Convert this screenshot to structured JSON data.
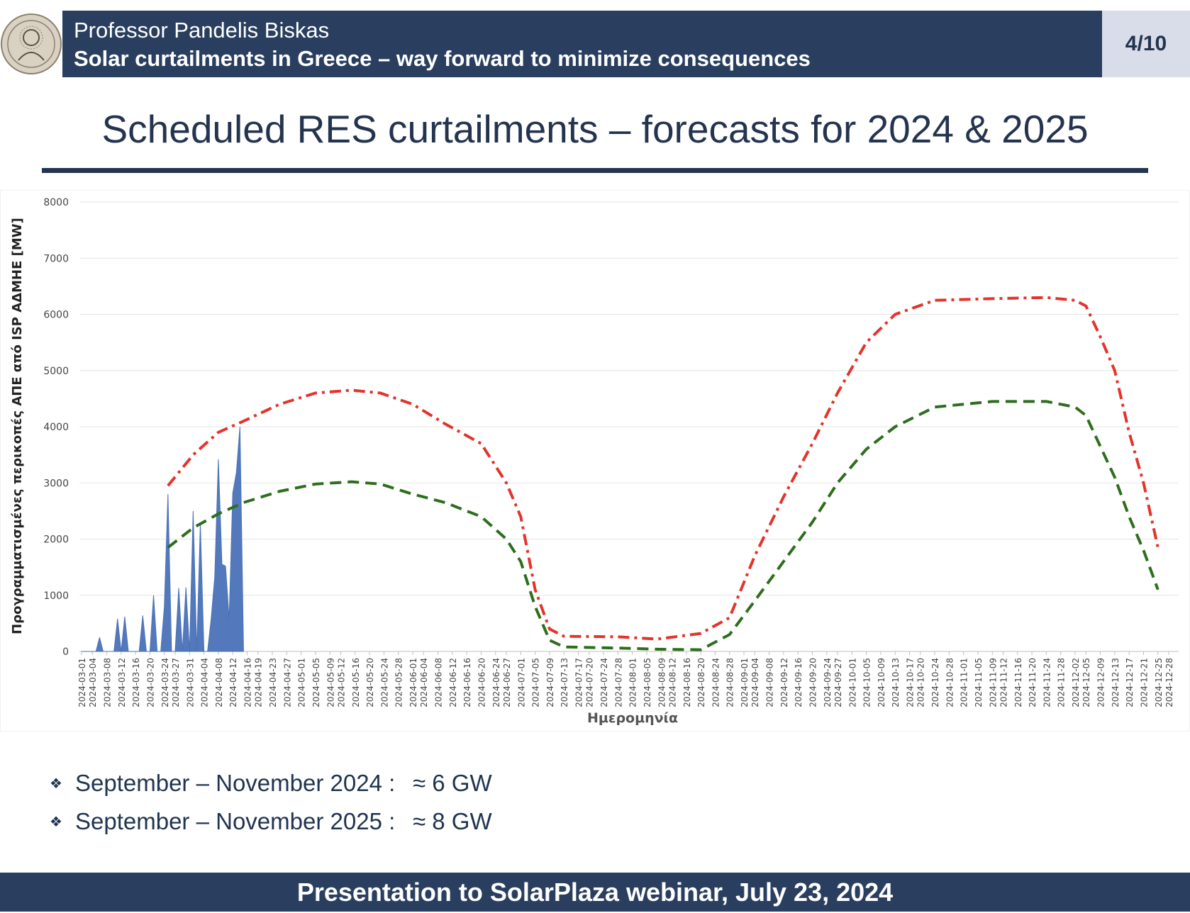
{
  "header": {
    "presenter": "Professor Pandelis Biskas",
    "subtitle": "Solar curtailments in Greece – way forward to minimize consequences",
    "page": "4/10"
  },
  "slide_title": "Scheduled RES curtailments – forecasts for 2024 & 2025",
  "chart_data": {
    "type": "line",
    "xlabel": "Ημερομηνία",
    "ylabel": "Προγραμματισμένες περικοπές ΑΠΕ από ISP ΑΔΜΗΕ [MW]",
    "ylim": [
      0,
      8000
    ],
    "y_ticks": [
      0,
      1000,
      2000,
      3000,
      4000,
      5000,
      6000,
      7000,
      8000
    ],
    "x_ticks": [
      "2024-03-01",
      "2024-03-04",
      "2024-03-08",
      "2024-03-12",
      "2024-03-16",
      "2024-03-20",
      "2024-03-24",
      "2024-03-27",
      "2024-03-31",
      "2024-04-04",
      "2024-04-08",
      "2024-04-12",
      "2024-04-16",
      "2024-04-19",
      "2024-04-23",
      "2024-04-27",
      "2024-05-01",
      "2024-05-05",
      "2024-05-09",
      "2024-05-12",
      "2024-05-16",
      "2024-05-20",
      "2024-05-24",
      "2024-05-28",
      "2024-06-01",
      "2024-06-04",
      "2024-06-08",
      "2024-06-12",
      "2024-06-16",
      "2024-06-20",
      "2024-06-24",
      "2024-06-27",
      "2024-07-01",
      "2024-07-05",
      "2024-07-09",
      "2024-07-13",
      "2024-07-17",
      "2024-07-20",
      "2024-07-24",
      "2024-07-28",
      "2024-08-01",
      "2024-08-05",
      "2024-08-09",
      "2024-08-12",
      "2024-08-16",
      "2024-08-20",
      "2024-08-24",
      "2024-08-28",
      "2024-09-01",
      "2024-09-04",
      "2024-09-08",
      "2024-09-12",
      "2024-09-16",
      "2024-09-20",
      "2024-09-24",
      "2024-09-27",
      "2024-10-01",
      "2024-10-05",
      "2024-10-09",
      "2024-10-13",
      "2024-10-17",
      "2024-10-20",
      "2024-10-24",
      "2024-10-28",
      "2024-11-01",
      "2024-11-05",
      "2024-11-09",
      "2024-11-12",
      "2024-11-16",
      "2024-11-20",
      "2024-11-24",
      "2024-11-28",
      "2024-12-02",
      "2024-12-05",
      "2024-12-09",
      "2024-12-13",
      "2024-12-17",
      "2024-12-21",
      "2024-12-25",
      "2024-12-28"
    ],
    "grid": true,
    "legend": "none",
    "series": [
      {
        "style": "area",
        "color": "#4a72b8",
        "points": [
          [
            "2024-03-01",
            0
          ],
          [
            "2024-03-05",
            0
          ],
          [
            "2024-03-06",
            250
          ],
          [
            "2024-03-07",
            0
          ],
          [
            "2024-03-10",
            0
          ],
          [
            "2024-03-11",
            580
          ],
          [
            "2024-03-12",
            0
          ],
          [
            "2024-03-13",
            620
          ],
          [
            "2024-03-14",
            0
          ],
          [
            "2024-03-17",
            0
          ],
          [
            "2024-03-18",
            640
          ],
          [
            "2024-03-19",
            0
          ],
          [
            "2024-03-20",
            0
          ],
          [
            "2024-03-21",
            1000
          ],
          [
            "2024-03-22",
            0
          ],
          [
            "2024-03-23",
            0
          ],
          [
            "2024-03-24",
            800
          ],
          [
            "2024-03-25",
            2800
          ],
          [
            "2024-03-26",
            0
          ],
          [
            "2024-03-27",
            0
          ],
          [
            "2024-03-28",
            1130
          ],
          [
            "2024-03-29",
            0
          ],
          [
            "2024-03-30",
            1140
          ],
          [
            "2024-03-31",
            0
          ],
          [
            "2024-04-01",
            2500
          ],
          [
            "2024-04-02",
            0
          ],
          [
            "2024-04-03",
            2280
          ],
          [
            "2024-04-04",
            0
          ],
          [
            "2024-04-05",
            0
          ],
          [
            "2024-04-06",
            580
          ],
          [
            "2024-04-07",
            1330
          ],
          [
            "2024-04-08",
            3420
          ],
          [
            "2024-04-09",
            1550
          ],
          [
            "2024-04-10",
            1520
          ],
          [
            "2024-04-11",
            580
          ],
          [
            "2024-04-12",
            2820
          ],
          [
            "2024-04-13",
            3180
          ],
          [
            "2024-04-14",
            4000
          ],
          [
            "2024-04-15",
            0
          ]
        ]
      },
      {
        "style": "dash-dot",
        "color": "#e2342b",
        "points": [
          [
            "2024-03-25",
            2950
          ],
          [
            "2024-04-01",
            3500
          ],
          [
            "2024-04-08",
            3900
          ],
          [
            "2024-04-15",
            4100
          ],
          [
            "2024-04-25",
            4400
          ],
          [
            "2024-05-05",
            4600
          ],
          [
            "2024-05-15",
            4650
          ],
          [
            "2024-05-23",
            4600
          ],
          [
            "2024-06-01",
            4400
          ],
          [
            "2024-06-10",
            4050
          ],
          [
            "2024-06-20",
            3700
          ],
          [
            "2024-06-27",
            3000
          ],
          [
            "2024-07-01",
            2400
          ],
          [
            "2024-07-05",
            1100
          ],
          [
            "2024-07-09",
            400
          ],
          [
            "2024-07-13",
            270
          ],
          [
            "2024-07-28",
            260
          ],
          [
            "2024-08-08",
            220
          ],
          [
            "2024-08-20",
            320
          ],
          [
            "2024-08-28",
            600
          ],
          [
            "2024-09-04",
            1700
          ],
          [
            "2024-09-12",
            2750
          ],
          [
            "2024-09-20",
            3700
          ],
          [
            "2024-09-27",
            4600
          ],
          [
            "2024-10-05",
            5500
          ],
          [
            "2024-10-13",
            6000
          ],
          [
            "2024-10-24",
            6250
          ],
          [
            "2024-11-09",
            6280
          ],
          [
            "2024-11-24",
            6300
          ],
          [
            "2024-12-02",
            6250
          ],
          [
            "2024-12-05",
            6150
          ],
          [
            "2024-12-09",
            5600
          ],
          [
            "2024-12-13",
            5000
          ],
          [
            "2024-12-17",
            3900
          ],
          [
            "2024-12-21",
            3000
          ],
          [
            "2024-12-25",
            1850
          ]
        ]
      },
      {
        "style": "dashed",
        "color": "#2d6e1d",
        "points": [
          [
            "2024-03-25",
            1850
          ],
          [
            "2024-04-01",
            2200
          ],
          [
            "2024-04-08",
            2450
          ],
          [
            "2024-04-15",
            2650
          ],
          [
            "2024-04-25",
            2850
          ],
          [
            "2024-05-05",
            2980
          ],
          [
            "2024-05-15",
            3020
          ],
          [
            "2024-05-23",
            2980
          ],
          [
            "2024-06-01",
            2800
          ],
          [
            "2024-06-10",
            2650
          ],
          [
            "2024-06-20",
            2400
          ],
          [
            "2024-06-27",
            2000
          ],
          [
            "2024-07-01",
            1600
          ],
          [
            "2024-07-05",
            800
          ],
          [
            "2024-07-09",
            200
          ],
          [
            "2024-07-13",
            80
          ],
          [
            "2024-07-28",
            60
          ],
          [
            "2024-08-08",
            40
          ],
          [
            "2024-08-20",
            30
          ],
          [
            "2024-08-28",
            300
          ],
          [
            "2024-09-04",
            900
          ],
          [
            "2024-09-12",
            1600
          ],
          [
            "2024-09-20",
            2300
          ],
          [
            "2024-09-27",
            3000
          ],
          [
            "2024-10-05",
            3600
          ],
          [
            "2024-10-13",
            4000
          ],
          [
            "2024-10-24",
            4350
          ],
          [
            "2024-11-09",
            4450
          ],
          [
            "2024-11-24",
            4450
          ],
          [
            "2024-12-02",
            4350
          ],
          [
            "2024-12-05",
            4200
          ],
          [
            "2024-12-09",
            3650
          ],
          [
            "2024-12-13",
            3100
          ],
          [
            "2024-12-17",
            2400
          ],
          [
            "2024-12-21",
            1800
          ],
          [
            "2024-12-25",
            1100
          ]
        ]
      }
    ]
  },
  "bullets": [
    {
      "label": "September – November 2024 :",
      "value": "≈ 6 GW"
    },
    {
      "label": "September – November 2025 :",
      "value": "≈ 8 GW"
    }
  ],
  "footer": "Presentation to SolarPlaza webinar, July 23, 2024"
}
